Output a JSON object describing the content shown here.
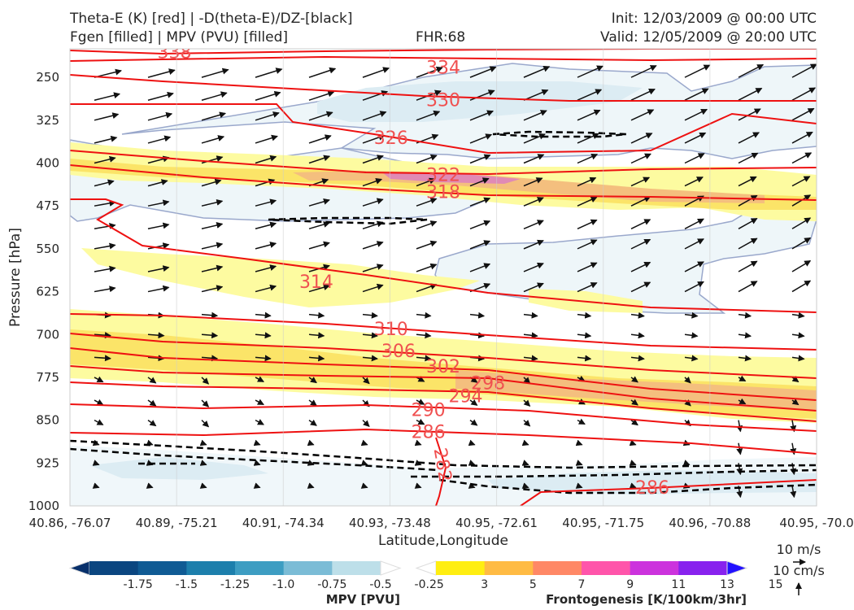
{
  "header": {
    "title_line1": "Theta-E (K) [red] | -D(theta-E)/DZ-[black]",
    "title_line2": "Fgen [filled] | MPV (PVU) [filled]",
    "fhr": "FHR:68",
    "init": "Init: 12/03/2009 @ 00:00 UTC",
    "valid": "Valid: 12/05/2009 @ 20:00 UTC"
  },
  "chart_data": {
    "type": "cross-section",
    "xlabel": "Latitude,Longitude",
    "ylabel": "Pressure [hPa]",
    "x_ticks": [
      "40.86, -76.07",
      "40.89, -75.21",
      "40.91, -74.34",
      "40.93, -73.48",
      "40.95, -72.61",
      "40.95, -71.75",
      "40.96, -70.88",
      "40.95, -70.0"
    ],
    "y_ticks": [
      250,
      325,
      400,
      475,
      550,
      625,
      700,
      775,
      850,
      925,
      1000
    ],
    "ylim": [
      1000,
      200
    ],
    "grid": true,
    "theta_e_labels": [
      {
        "value": "338",
        "p": 205,
        "x": 0.14
      },
      {
        "value": "334",
        "p": 232,
        "x": 0.5
      },
      {
        "value": "330",
        "p": 289,
        "x": 0.5
      },
      {
        "value": "326",
        "p": 355,
        "x": 0.43
      },
      {
        "value": "322",
        "p": 420,
        "x": 0.5
      },
      {
        "value": "318",
        "p": 450,
        "x": 0.5
      },
      {
        "value": "314",
        "p": 607,
        "x": 0.33
      },
      {
        "value": "310",
        "p": 690,
        "x": 0.43
      },
      {
        "value": "306",
        "p": 728,
        "x": 0.44
      },
      {
        "value": "302",
        "p": 755,
        "x": 0.5
      },
      {
        "value": "298",
        "p": 784,
        "x": 0.56
      },
      {
        "value": "294",
        "p": 807,
        "x": 0.53
      },
      {
        "value": "290",
        "p": 831,
        "x": 0.48
      },
      {
        "value": "286",
        "p": 870,
        "x": 0.48
      },
      {
        "value": "282",
        "p": 928,
        "x": 0.5,
        "rotate": 80
      },
      {
        "value": "286",
        "p": 967,
        "x": 0.78
      }
    ],
    "mpv_colorbar": {
      "label": "MPV [PVU]",
      "levels": [
        "-1.75",
        "-1.5",
        "-1.25",
        "-1.0",
        "-0.75",
        "-0.5",
        "-0.25"
      ],
      "colors": [
        "#08306b",
        "#0b4680",
        "#105b94",
        "#1d7fac",
        "#3d9dc2",
        "#7bbcd6",
        "#bddfe9",
        "#ffffff"
      ]
    },
    "fgen_colorbar": {
      "label": "Frontogenesis [K/100km/3hr]",
      "levels": [
        "3",
        "5",
        "7",
        "9",
        "11",
        "13",
        "15"
      ],
      "colors": [
        "#ffffff",
        "#ffee11",
        "#ffbb44",
        "#ff8866",
        "#ff55aa",
        "#cc33dd",
        "#8822ee",
        "#2211ff"
      ]
    },
    "vector_keys": [
      {
        "label": "10 m/s",
        "direction": "horizontal"
      },
      {
        "label": "10 cm/s",
        "direction": "vertical"
      }
    ]
  }
}
